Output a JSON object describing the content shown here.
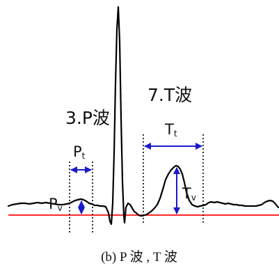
{
  "labels": {
    "p_wave_title": "3.P波",
    "t_wave_title": "7.T波",
    "p_interval_main": "P",
    "p_interval_sub": "t",
    "t_interval_main": "T",
    "t_interval_sub": "t",
    "p_amplitude_main": "P",
    "p_amplitude_sub": "v",
    "t_amplitude_main": "T",
    "t_amplitude_sub": "v"
  },
  "caption": "(b) P 波 , T 波",
  "colors": {
    "signal": "#000000",
    "baseline": "#ff2a2a",
    "arrow": "#1a1acc",
    "guide": "#000000",
    "text": "#111111"
  }
}
